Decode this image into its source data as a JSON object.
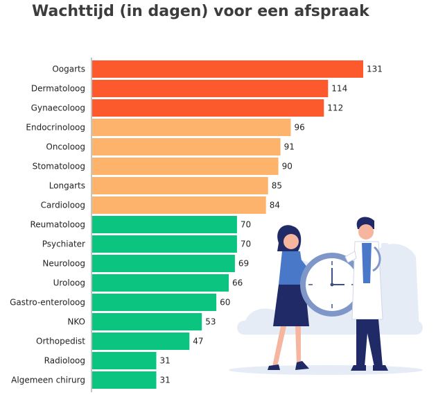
{
  "chart_data": {
    "type": "bar",
    "orientation": "horizontal",
    "title": "Wachttijd (in dagen) voor een afspraak",
    "categories": [
      "Oogarts",
      "Dermatoloog",
      "Gynaecoloog",
      "Endocrinoloog",
      "Oncoloog",
      "Stomatoloog",
      "Longarts",
      "Cardioloog",
      "Reumatoloog",
      "Psychiater",
      "Neuroloog",
      "Uroloog",
      "Gastro-enteroloog",
      "NKO",
      "Orthopedist",
      "Radioloog",
      "Algemeen chirurg"
    ],
    "values": [
      131,
      114,
      112,
      96,
      91,
      90,
      85,
      84,
      70,
      70,
      69,
      66,
      60,
      53,
      47,
      31,
      31
    ],
    "value_labels": [
      "131",
      "114",
      "112",
      "96",
      "91",
      "90",
      "85",
      "84",
      "70",
      "70",
      "69",
      "66",
      "60",
      "53",
      "47",
      "31",
      "31"
    ],
    "xlim": [
      0,
      131
    ],
    "grid": false,
    "legend": "none",
    "colors": {
      "high": "#fc5a2d",
      "medium": "#fdb36b",
      "low": "#0bc47f",
      "axis": "#888888",
      "text": "#3c3c3c"
    },
    "color_groups": [
      "high",
      "high",
      "high",
      "medium",
      "medium",
      "medium",
      "medium",
      "medium",
      "low",
      "low",
      "low",
      "low",
      "low",
      "low",
      "low",
      "low",
      "low"
    ],
    "illustration": "doctors-holding-clock-illustration"
  }
}
